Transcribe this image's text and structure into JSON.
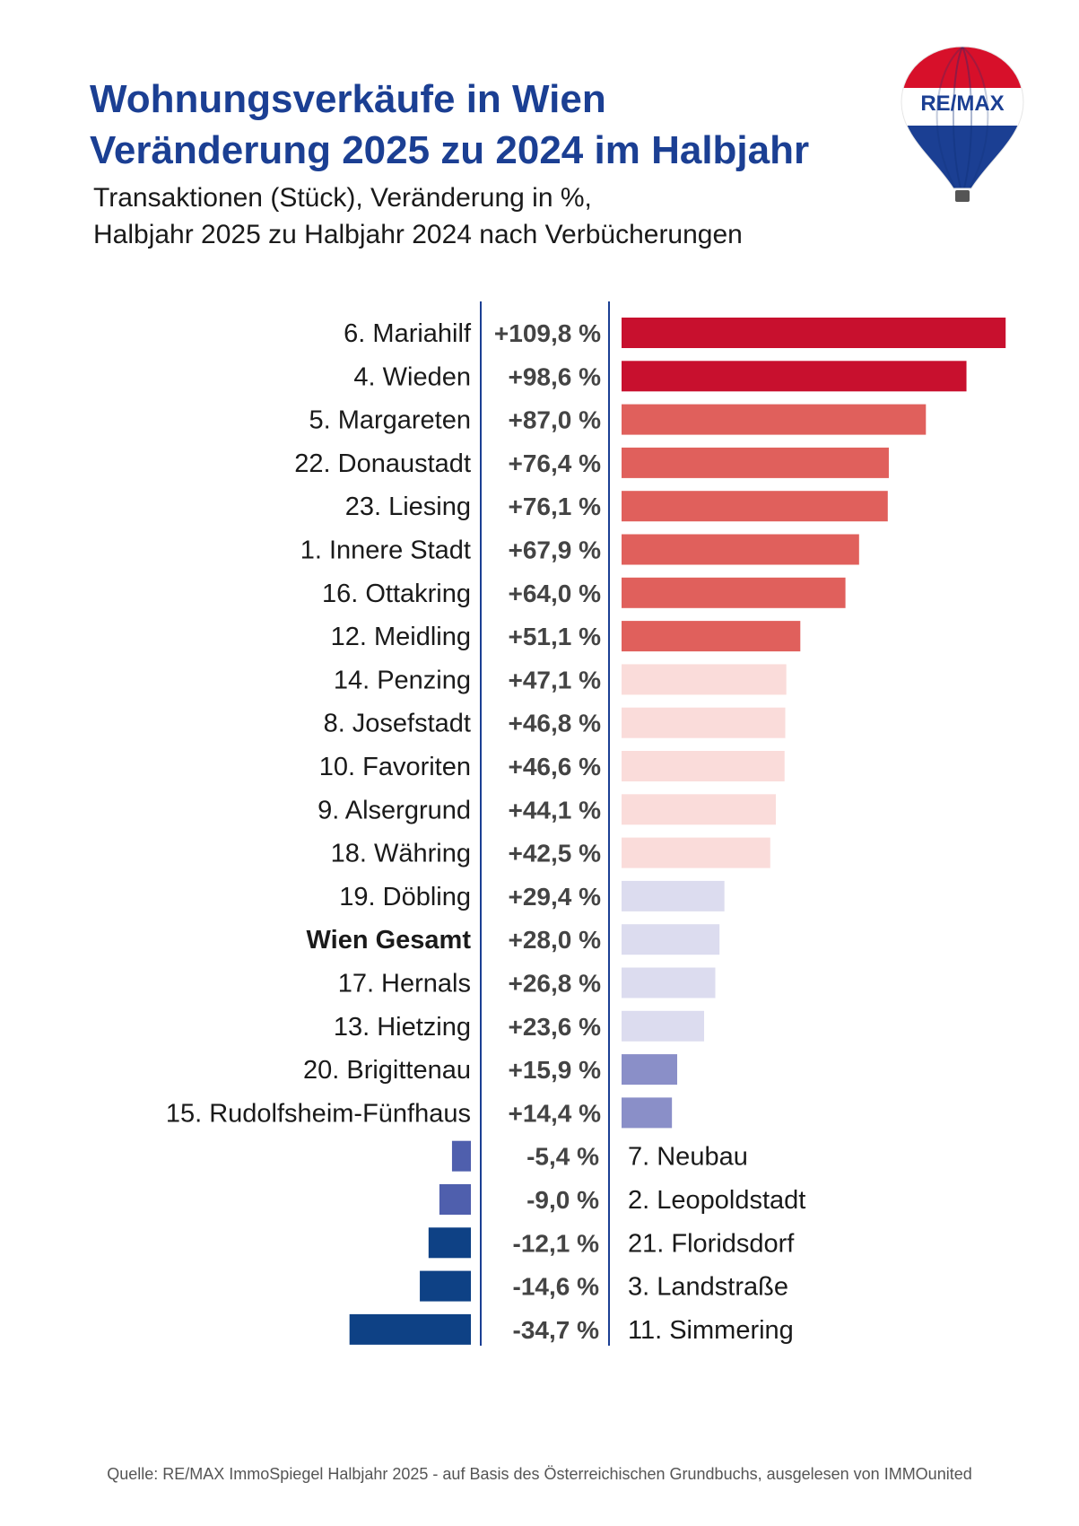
{
  "title": {
    "line1": "Wohnungsverkäufe in Wien",
    "line2": "Veränderung 2025 zu 2024 im Halbjahr"
  },
  "subtitle": {
    "line1": "Transaktionen (Stück), Veränderung in %,",
    "line2": "Halbjahr 2025 zu Halbjahr 2024 nach Verbücherungen"
  },
  "logo": {
    "text": "RE/MAX"
  },
  "source": "Quelle: RE/MAX ImmoSpiegel Halbjahr 2025 - auf Basis des Österreichischen Grundbuchs, ausgelesen von IMMOunited",
  "colors": {
    "accent": "#1b3f93",
    "rot_stark": "#c8102e",
    "rot": "#e0605c",
    "rosa": "#fadcda",
    "lavendel": "#dcdcef",
    "violett": "#8a8fc8",
    "blau": "#4f5fad",
    "dunkelblau": "#0e4185"
  },
  "chart_data": {
    "type": "bar",
    "orientation": "horizontal",
    "title": "Wohnungsverkäufe in Wien – Veränderung 2025 zu 2024 im Halbjahr",
    "xlabel": "Veränderung in %",
    "ylabel": "",
    "unit": "%",
    "categories": [
      "6. Mariahilf",
      "4. Wieden",
      "5. Margareten",
      "22. Donaustadt",
      "23. Liesing",
      "1. Innere Stadt",
      "16. Ottakring",
      "12. Meidling",
      "14. Penzing",
      "8. Josefstadt",
      "10. Favoriten",
      "9. Alsergrund",
      "18. Währing",
      "19. Döbling",
      "Wien Gesamt",
      "17. Hernals",
      "13. Hietzing",
      "20. Brigittenau",
      "15. Rudolfsheim-Fünfhaus",
      "7. Neubau",
      "2. Leopoldstadt",
      "21. Floridsdorf",
      "3. Landstraße",
      "11. Simmering"
    ],
    "values": [
      109.8,
      98.6,
      87.0,
      76.4,
      76.1,
      67.9,
      64.0,
      51.1,
      47.1,
      46.8,
      46.6,
      44.1,
      42.5,
      29.4,
      28.0,
      26.8,
      23.6,
      15.9,
      14.4,
      -5.4,
      -9.0,
      -12.1,
      -14.6,
      -34.7
    ],
    "value_labels": [
      "+109,8 %",
      "+98,6 %",
      "+87,0 %",
      "+76,4 %",
      "+76,1 %",
      "+67,9 %",
      "+64,0 %",
      "+51,1 %",
      "+47,1 %",
      "+46,8 %",
      "+46,6 %",
      "+44,1 %",
      "+42,5 %",
      "+29,4 %",
      "+28,0  %",
      "+26,8 %",
      "+23,6 %",
      "+15,9 %",
      "+14,4 %",
      "-5,4 %",
      "-9,0 %",
      "-12,1 %",
      "-14,6 %",
      "-34,7 %"
    ],
    "color_groups": [
      "rot_stark",
      "rot_stark",
      "rot",
      "rot",
      "rot",
      "rot",
      "rot",
      "rot",
      "rosa",
      "rosa",
      "rosa",
      "rosa",
      "rosa",
      "lavendel",
      "lavendel",
      "lavendel",
      "lavendel",
      "violett",
      "violett",
      "blau",
      "blau",
      "dunkelblau",
      "dunkelblau",
      "dunkelblau"
    ],
    "highlight": "Wien Gesamt",
    "grid": false,
    "legend": "none"
  }
}
